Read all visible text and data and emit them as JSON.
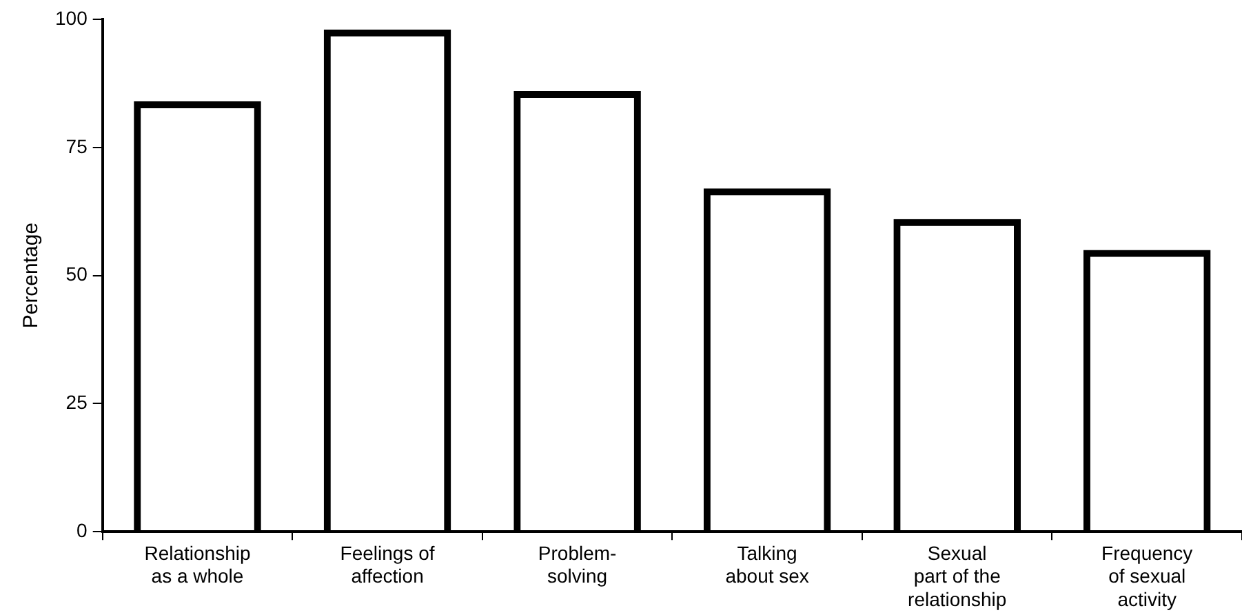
{
  "chart_data": {
    "type": "bar",
    "ylabel": "Percentage",
    "categories": [
      "Relationship\nas a whole",
      "Feelings of\naffection",
      "Problem-\nsolving",
      "Talking\nabout sex",
      "Sexual\npart of the\nrelationship",
      "Frequency\nof sexual\nactivity"
    ],
    "values": [
      84,
      98,
      86,
      67,
      61,
      55
    ],
    "color": "#000000",
    "ylim": [
      0,
      100
    ],
    "yticks": [
      0,
      25,
      50,
      75,
      100
    ],
    "grid": false,
    "legend": false
  }
}
